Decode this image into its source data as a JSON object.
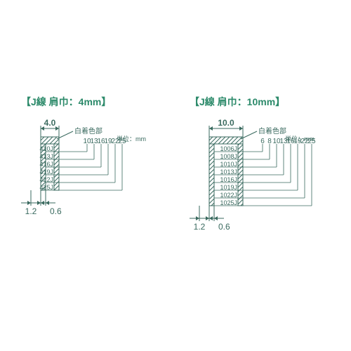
{
  "unit_label": "単位：mm",
  "left": {
    "title": "【J線  肩巾：4mm】",
    "width_label": "4.0",
    "thickness_label": "1.2",
    "wall_label": "0.6",
    "note_label": "白着色部",
    "rows": [
      {
        "code": "410J",
        "len": "10"
      },
      {
        "code": "413J",
        "len": "13"
      },
      {
        "code": "416J",
        "len": "16"
      },
      {
        "code": "419J",
        "len": "19"
      },
      {
        "code": "422J",
        "len": "22"
      },
      {
        "code": "425J",
        "len": "25"
      }
    ]
  },
  "right": {
    "title": "【J線  肩巾：10mm】",
    "width_label": "10.0",
    "thickness_label": "1.2",
    "wall_label": "0.6",
    "note_label": "白着色部",
    "rows": [
      {
        "code": "1006J",
        "len": "6"
      },
      {
        "code": "1008J",
        "len": "8"
      },
      {
        "code": "1010J",
        "len": "10"
      },
      {
        "code": "1013J",
        "len": "13"
      },
      {
        "code": "1016J",
        "len": "16"
      },
      {
        "code": "1019J",
        "len": "19"
      },
      {
        "code": "1022J",
        "len": "22"
      },
      {
        "code": "1025J",
        "len": "25"
      }
    ]
  },
  "colors": {
    "title": "#2c8a6a",
    "line": "#3a6a5f",
    "text": "#3a6a5f",
    "hatch": "#3a6a5f"
  },
  "fonts": {
    "title_size": 14,
    "dim_size": 12,
    "code_size": 9,
    "len_size": 10,
    "unit_size": 9
  }
}
